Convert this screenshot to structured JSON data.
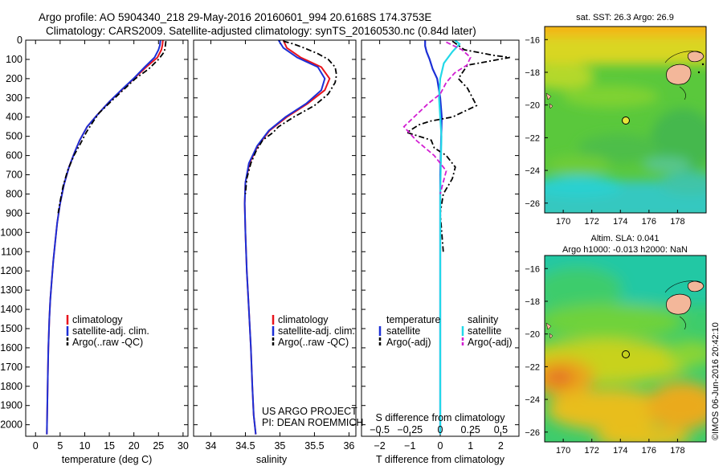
{
  "header": {
    "line1": "Argo profile: AO 5904340_218 29-May-2016 20160601_994 20.6168S 174.3753E",
    "line2": "Climatology: CARS2009. Satellite-adjusted climatology: synTS_20160530.nc (0.84d later)"
  },
  "colors": {
    "climatology": "#e8141c",
    "satellite": "#1c2fd6",
    "argo": "#000000",
    "sat_salinity": "#22d8e8",
    "argo_salinity": "#d21ed2",
    "land": "#f3b79a"
  },
  "chart_data": [
    {
      "type": "line",
      "panel": "temperature",
      "xlabel": "temperature (deg C)",
      "xlim": [
        -2,
        31
      ],
      "xticks": [
        0,
        5,
        10,
        15,
        20,
        25,
        30
      ],
      "ylim": [
        2060,
        0
      ],
      "yticks": [
        0,
        100,
        200,
        300,
        400,
        500,
        600,
        700,
        800,
        900,
        1000,
        1100,
        1200,
        1300,
        1400,
        1500,
        1600,
        1700,
        1800,
        1900,
        2000
      ],
      "legend": [
        "climatology",
        "satellite-adj. clim.",
        "Argo(..raw -QC)"
      ],
      "series": [
        {
          "name": "climatology",
          "style": "solid",
          "x": [
            25.9,
            25.8,
            25.6,
            24.8,
            22.5,
            20,
            17.5,
            15,
            12.5,
            10.5,
            9,
            8,
            6.8,
            5.8,
            5,
            4.4,
            4,
            3.6,
            3.3,
            3,
            2.8,
            2.6,
            2.5,
            2.4,
            2.3
          ],
          "y": [
            0,
            25,
            50,
            90,
            140,
            200,
            260,
            320,
            390,
            450,
            520,
            580,
            660,
            750,
            850,
            950,
            1050,
            1150,
            1250,
            1350,
            1450,
            1600,
            1750,
            1900,
            2050
          ]
        },
        {
          "name": "satellite-adj. clim.",
          "style": "solid",
          "x": [
            25.4,
            25.3,
            25.0,
            24.2,
            22.2,
            19.9,
            17.4,
            15,
            12.5,
            10.5,
            9,
            8,
            6.8,
            5.8,
            5,
            4.4,
            4,
            3.6,
            3.3,
            3,
            2.8,
            2.6,
            2.5,
            2.4,
            2.3
          ],
          "y": [
            0,
            25,
            50,
            90,
            140,
            200,
            260,
            320,
            390,
            450,
            520,
            580,
            660,
            750,
            850,
            950,
            1050,
            1150,
            1250,
            1350,
            1450,
            1600,
            1750,
            1900,
            2050
          ]
        },
        {
          "name": "Argo(..raw -QC)",
          "style": "dash-dot",
          "x": [
            26.5,
            26.4,
            26.2,
            25,
            23,
            20.3,
            17.8,
            15.3,
            12.9,
            11.8,
            10.3,
            9.1,
            7.8,
            6.5,
            5.6,
            5.0,
            4.6
          ],
          "y": [
            5,
            30,
            60,
            100,
            150,
            200,
            260,
            320,
            380,
            420,
            480,
            540,
            600,
            680,
            760,
            840,
            900
          ]
        }
      ]
    },
    {
      "type": "line",
      "panel": "salinity",
      "xlabel": "salinity",
      "xlim": [
        33.75,
        36.1
      ],
      "xticks": [
        34,
        34.5,
        35,
        35.5,
        36
      ],
      "ylim": [
        2060,
        0
      ],
      "legend": [
        "climatology",
        "satellite-adj. clim.",
        "Argo(..raw -QC)"
      ],
      "annotation": [
        "US ARGO PROJECT",
        "PI: DEAN ROEMMICH"
      ],
      "series": [
        {
          "name": "climatology",
          "style": "solid",
          "x": [
            35.05,
            35.1,
            35.3,
            35.6,
            35.72,
            35.65,
            35.4,
            35.1,
            34.85,
            34.68,
            34.56,
            34.5,
            34.49,
            34.5,
            34.52,
            34.55,
            34.58,
            34.6,
            34.62,
            34.65
          ],
          "y": [
            0,
            40,
            90,
            140,
            200,
            260,
            330,
            400,
            470,
            550,
            640,
            740,
            850,
            1000,
            1200,
            1400,
            1600,
            1800,
            1950,
            2050
          ]
        },
        {
          "name": "satellite-adj. clim.",
          "style": "solid",
          "x": [
            34.98,
            35.05,
            35.25,
            35.55,
            35.65,
            35.6,
            35.38,
            35.08,
            34.84,
            34.67,
            34.55,
            34.5,
            34.49,
            34.5,
            34.52,
            34.55,
            34.58,
            34.6,
            34.62,
            34.65
          ],
          "y": [
            0,
            40,
            90,
            140,
            200,
            260,
            330,
            400,
            470,
            550,
            640,
            740,
            850,
            1000,
            1200,
            1400,
            1600,
            1800,
            1950,
            2050
          ]
        },
        {
          "name": "Argo(..raw -QC)",
          "style": "dash-dot",
          "x": [
            35.05,
            35.2,
            35.35,
            35.55,
            35.7,
            35.8,
            35.82,
            35.8,
            35.7,
            35.5,
            35.2,
            34.98,
            34.9,
            34.75,
            34.65,
            34.58,
            34.52,
            34.5
          ],
          "y": [
            5,
            20,
            40,
            70,
            100,
            140,
            180,
            220,
            280,
            340,
            400,
            450,
            480,
            520,
            580,
            640,
            720,
            800
          ]
        }
      ]
    },
    {
      "type": "line",
      "panel": "difference",
      "xlabel": "T difference from climatology",
      "xlabel_top": "S difference from climatology",
      "xlim": [
        -2.6,
        2.6
      ],
      "xticks": [
        -2,
        -1,
        0,
        1,
        2
      ],
      "xticks_top": [
        -0.5,
        -0.25,
        0,
        0.25,
        0.5
      ],
      "ylim": [
        2060,
        0
      ],
      "legend_titles": [
        "temperature",
        "salinity"
      ],
      "legend": [
        "satellite",
        "Argo(-adj)",
        "satellite",
        "Argo(-adj)"
      ],
      "series": [
        {
          "name": "satellite",
          "group": "temperature",
          "style": "solid",
          "x": [
            -0.5,
            -0.5,
            -0.45,
            -0.35,
            -0.25,
            -0.1,
            0.0,
            0.05,
            0.03,
            0.0,
            0.0,
            0.0,
            0.0
          ],
          "y": [
            0,
            30,
            60,
            100,
            150,
            200,
            300,
            400,
            520,
            700,
            1000,
            1500,
            2050
          ]
        },
        {
          "name": "Argo(-adj)",
          "group": "temperature",
          "style": "dash-dot",
          "x": [
            0.4,
            0.8,
            1.8,
            2.3,
            1.6,
            0.9,
            0.6,
            0.9,
            1.2,
            0.4,
            -0.3,
            -0.7,
            -1.1,
            -0.3,
            -0.2,
            0.2,
            0.5,
            0.4,
            0.1,
            0.0,
            0.1
          ],
          "y": [
            5,
            50,
            80,
            90,
            110,
            130,
            200,
            250,
            340,
            400,
            420,
            440,
            480,
            520,
            560,
            600,
            660,
            720,
            800,
            900,
            1100
          ]
        },
        {
          "name": "satellite",
          "group": "salinity",
          "style": "solid",
          "x": [
            0.12,
            0.16,
            0.1,
            0.03,
            0.0,
            -0.01,
            0.01,
            0.0,
            0.0,
            0.0
          ],
          "y": [
            0,
            20,
            60,
            120,
            200,
            300,
            500,
            800,
            1200,
            2050
          ]
        },
        {
          "name": "Argo(-adj)",
          "group": "salinity",
          "style": "dashed",
          "x": [
            0.05,
            0.18,
            0.25,
            0.22,
            0.12,
            0.05,
            0.0,
            -0.1,
            -0.3,
            -0.2,
            -0.05,
            0.05,
            0.02,
            0.0
          ],
          "y": [
            10,
            50,
            90,
            130,
            170,
            220,
            280,
            330,
            450,
            520,
            600,
            680,
            750,
            800
          ]
        }
      ]
    },
    {
      "type": "heatmap",
      "panel": "sst-map",
      "title": "sat. SST: 26.3 Argo: 26.9",
      "xlim": [
        168.7,
        180
      ],
      "ylim": [
        -26.6,
        -15.2
      ],
      "xticks": [
        170,
        172,
        174,
        176,
        178
      ],
      "yticks": [
        -16,
        -18,
        -20,
        -22,
        -24,
        -26
      ],
      "marker": {
        "lon": 174.3753,
        "lat": -20.6168
      }
    },
    {
      "type": "heatmap",
      "panel": "sla-map",
      "title": [
        "Altim. SLA: 0.041",
        "Argo h1000: -0.013 h2000: NaN"
      ],
      "xlim": [
        168.7,
        180
      ],
      "ylim": [
        -26.6,
        -15.2
      ],
      "xticks": [
        170,
        172,
        174,
        176,
        178
      ],
      "yticks": [
        -16,
        -18,
        -20,
        -22,
        -24,
        -26
      ],
      "marker": {
        "lon": 174.3753,
        "lat": -20.6168
      }
    }
  ],
  "footer": {
    "credit": "©IMOS 06-Jun-2016 20:42:10"
  }
}
